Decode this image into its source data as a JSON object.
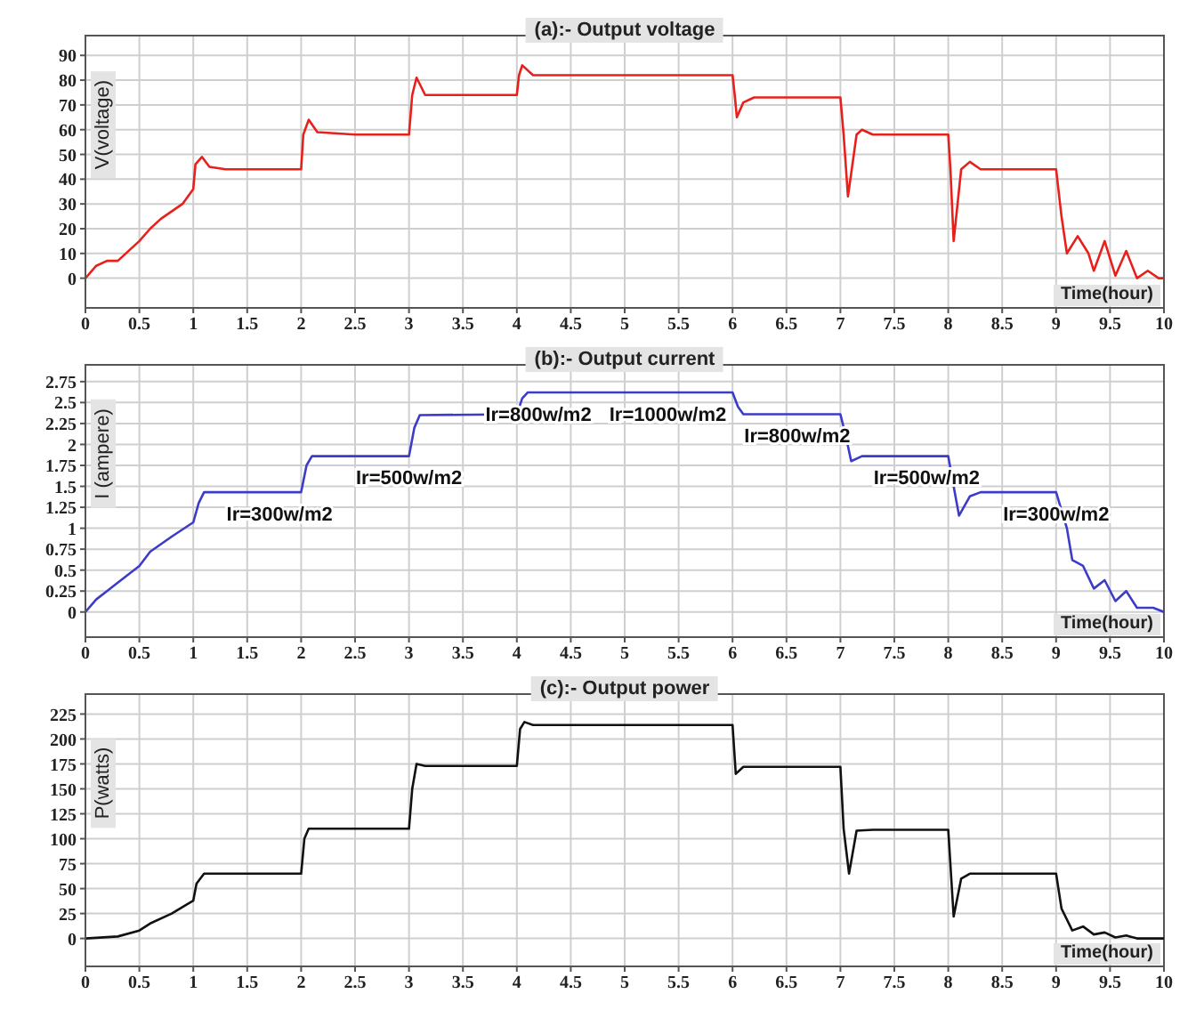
{
  "chart_data": [
    {
      "type": "line",
      "title": "(a):- Output voltage",
      "xlabel": "Time(hour)",
      "ylabel": "V(voltage)",
      "xlim": [
        0,
        10
      ],
      "xticks": [
        0,
        0.5,
        1,
        1.5,
        2,
        2.5,
        3,
        3.5,
        4,
        4.5,
        5,
        5.5,
        6,
        6.5,
        7,
        7.5,
        8,
        8.5,
        9,
        9.5,
        10
      ],
      "ylim": [
        -12,
        98
      ],
      "yticks": [
        0,
        10,
        20,
        30,
        40,
        50,
        60,
        70,
        80,
        90
      ],
      "grid": true,
      "series": [
        {
          "color": "#e8201c",
          "x": [
            0,
            0.1,
            0.2,
            0.3,
            0.5,
            0.6,
            0.7,
            0.9,
            1.0,
            1.02,
            1.08,
            1.15,
            1.3,
            2.0,
            2.02,
            2.07,
            2.15,
            2.5,
            3.0,
            3.03,
            3.07,
            3.15,
            4.0,
            4.02,
            4.05,
            4.15,
            6.0,
            6.02,
            6.04,
            6.1,
            6.2,
            7.0,
            7.03,
            7.07,
            7.15,
            7.2,
            7.3,
            8.0,
            8.02,
            8.05,
            8.12,
            8.2,
            8.3,
            9.0,
            9.05,
            9.1,
            9.2,
            9.3,
            9.35,
            9.45,
            9.55,
            9.65,
            9.75,
            9.85,
            9.95,
            10
          ],
          "values": [
            0,
            5,
            7,
            7,
            15,
            20,
            24,
            30,
            36,
            46,
            49,
            45,
            44,
            44,
            58,
            64,
            59,
            58,
            58,
            74,
            81,
            74,
            74,
            82,
            86,
            82,
            82,
            74,
            65,
            71,
            73,
            73,
            58,
            33,
            58,
            60,
            58,
            58,
            44,
            15,
            44,
            47,
            44,
            44,
            25,
            10,
            17,
            10,
            3,
            15,
            1,
            11,
            0,
            3,
            0,
            0
          ]
        }
      ]
    },
    {
      "type": "line",
      "title": "(b):- Output current",
      "xlabel": "Time(hour)",
      "ylabel": "I (ampere)",
      "xlim": [
        0,
        10
      ],
      "xticks": [
        0,
        0.5,
        1,
        1.5,
        2,
        2.5,
        3,
        3.5,
        4,
        4.5,
        5,
        5.5,
        6,
        6.5,
        7,
        7.5,
        8,
        8.5,
        9,
        9.5,
        10
      ],
      "ylim": [
        -0.3,
        2.95
      ],
      "yticks": [
        0,
        0.25,
        0.5,
        0.75,
        1,
        1.25,
        1.5,
        1.75,
        2,
        2.25,
        2.5,
        2.75
      ],
      "grid": true,
      "series": [
        {
          "color": "#3c3cc8",
          "x": [
            0,
            0.1,
            0.2,
            0.3,
            0.5,
            0.6,
            0.8,
            1.0,
            1.05,
            1.1,
            2.0,
            2.05,
            2.1,
            3.0,
            3.05,
            3.1,
            4.0,
            4.05,
            4.1,
            6.0,
            6.05,
            6.1,
            7.0,
            7.05,
            7.1,
            7.2,
            8.0,
            8.05,
            8.1,
            8.2,
            8.3,
            9.0,
            9.1,
            9.15,
            9.25,
            9.35,
            9.45,
            9.55,
            9.65,
            9.75,
            9.9,
            10
          ],
          "values": [
            0,
            0.15,
            0.25,
            0.35,
            0.55,
            0.72,
            0.9,
            1.07,
            1.3,
            1.43,
            1.43,
            1.75,
            1.86,
            1.86,
            2.2,
            2.35,
            2.36,
            2.55,
            2.62,
            2.62,
            2.45,
            2.36,
            2.36,
            2.1,
            1.8,
            1.86,
            1.86,
            1.5,
            1.15,
            1.38,
            1.43,
            1.43,
            1.0,
            0.62,
            0.55,
            0.28,
            0.38,
            0.13,
            0.25,
            0.05,
            0.05,
            0
          ]
        }
      ],
      "annotations": [
        "Ir=300w/m2",
        "Ir=500w/m2",
        "Ir=800w/m2",
        "Ir=1000w/m2",
        "Ir=800w/m2",
        "Ir=500w/m2",
        "Ir=300w/m2"
      ]
    },
    {
      "type": "line",
      "title": "(c):- Output power",
      "xlabel": "Time(hour)",
      "ylabel": "P(watts)",
      "xlim": [
        0,
        10
      ],
      "xticks": [
        0,
        0.5,
        1,
        1.5,
        2,
        2.5,
        3,
        3.5,
        4,
        4.5,
        5,
        5.5,
        6,
        6.5,
        7,
        7.5,
        8,
        8.5,
        9,
        9.5,
        10
      ],
      "ylim": [
        -28,
        245
      ],
      "yticks": [
        0,
        25,
        50,
        75,
        100,
        125,
        150,
        175,
        200,
        225
      ],
      "grid": true,
      "series": [
        {
          "color": "#111111",
          "x": [
            0,
            0.3,
            0.5,
            0.6,
            0.8,
            1.0,
            1.03,
            1.1,
            2.0,
            2.03,
            2.07,
            3.0,
            3.03,
            3.07,
            3.15,
            4.0,
            4.03,
            4.07,
            4.15,
            6.0,
            6.03,
            6.1,
            7.0,
            7.03,
            7.08,
            7.15,
            7.3,
            8.0,
            8.05,
            8.12,
            8.2,
            9.0,
            9.05,
            9.15,
            9.25,
            9.35,
            9.45,
            9.55,
            9.65,
            9.75,
            10
          ],
          "values": [
            0,
            2,
            8,
            15,
            25,
            38,
            55,
            65,
            65,
            100,
            110,
            110,
            150,
            175,
            173,
            173,
            210,
            217,
            214,
            214,
            165,
            172,
            172,
            110,
            65,
            108,
            109,
            109,
            22,
            60,
            65,
            65,
            30,
            8,
            12,
            4,
            6,
            1,
            3,
            0,
            0
          ]
        }
      ]
    }
  ]
}
